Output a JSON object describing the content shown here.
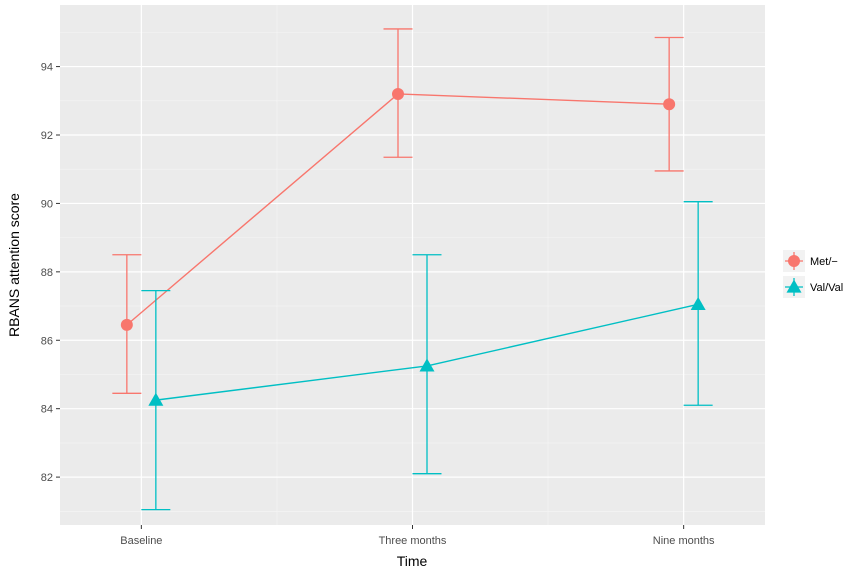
{
  "chart_data": {
    "type": "line",
    "title": "",
    "xlabel": "Time",
    "ylabel": "RBANS attention score",
    "categories": [
      "Baseline",
      "Three months",
      "Nine months"
    ],
    "ylim": [
      80.6,
      95.8
    ],
    "yticks": [
      82,
      84,
      86,
      88,
      90,
      92,
      94
    ],
    "grid": true,
    "legend_position": "right",
    "error_bars": true,
    "series": [
      {
        "name": "Met/−",
        "marker": "circle",
        "color": "#F8766D",
        "values": [
          86.45,
          93.2,
          92.9
        ],
        "lower": [
          84.45,
          91.35,
          90.95
        ],
        "upper": [
          88.5,
          95.1,
          94.85
        ]
      },
      {
        "name": "Val/Val",
        "marker": "triangle",
        "color": "#00BFC4",
        "values": [
          84.25,
          85.25,
          87.05
        ],
        "lower": [
          81.05,
          82.1,
          84.1
        ],
        "upper": [
          87.45,
          88.5,
          90.05
        ]
      }
    ]
  }
}
